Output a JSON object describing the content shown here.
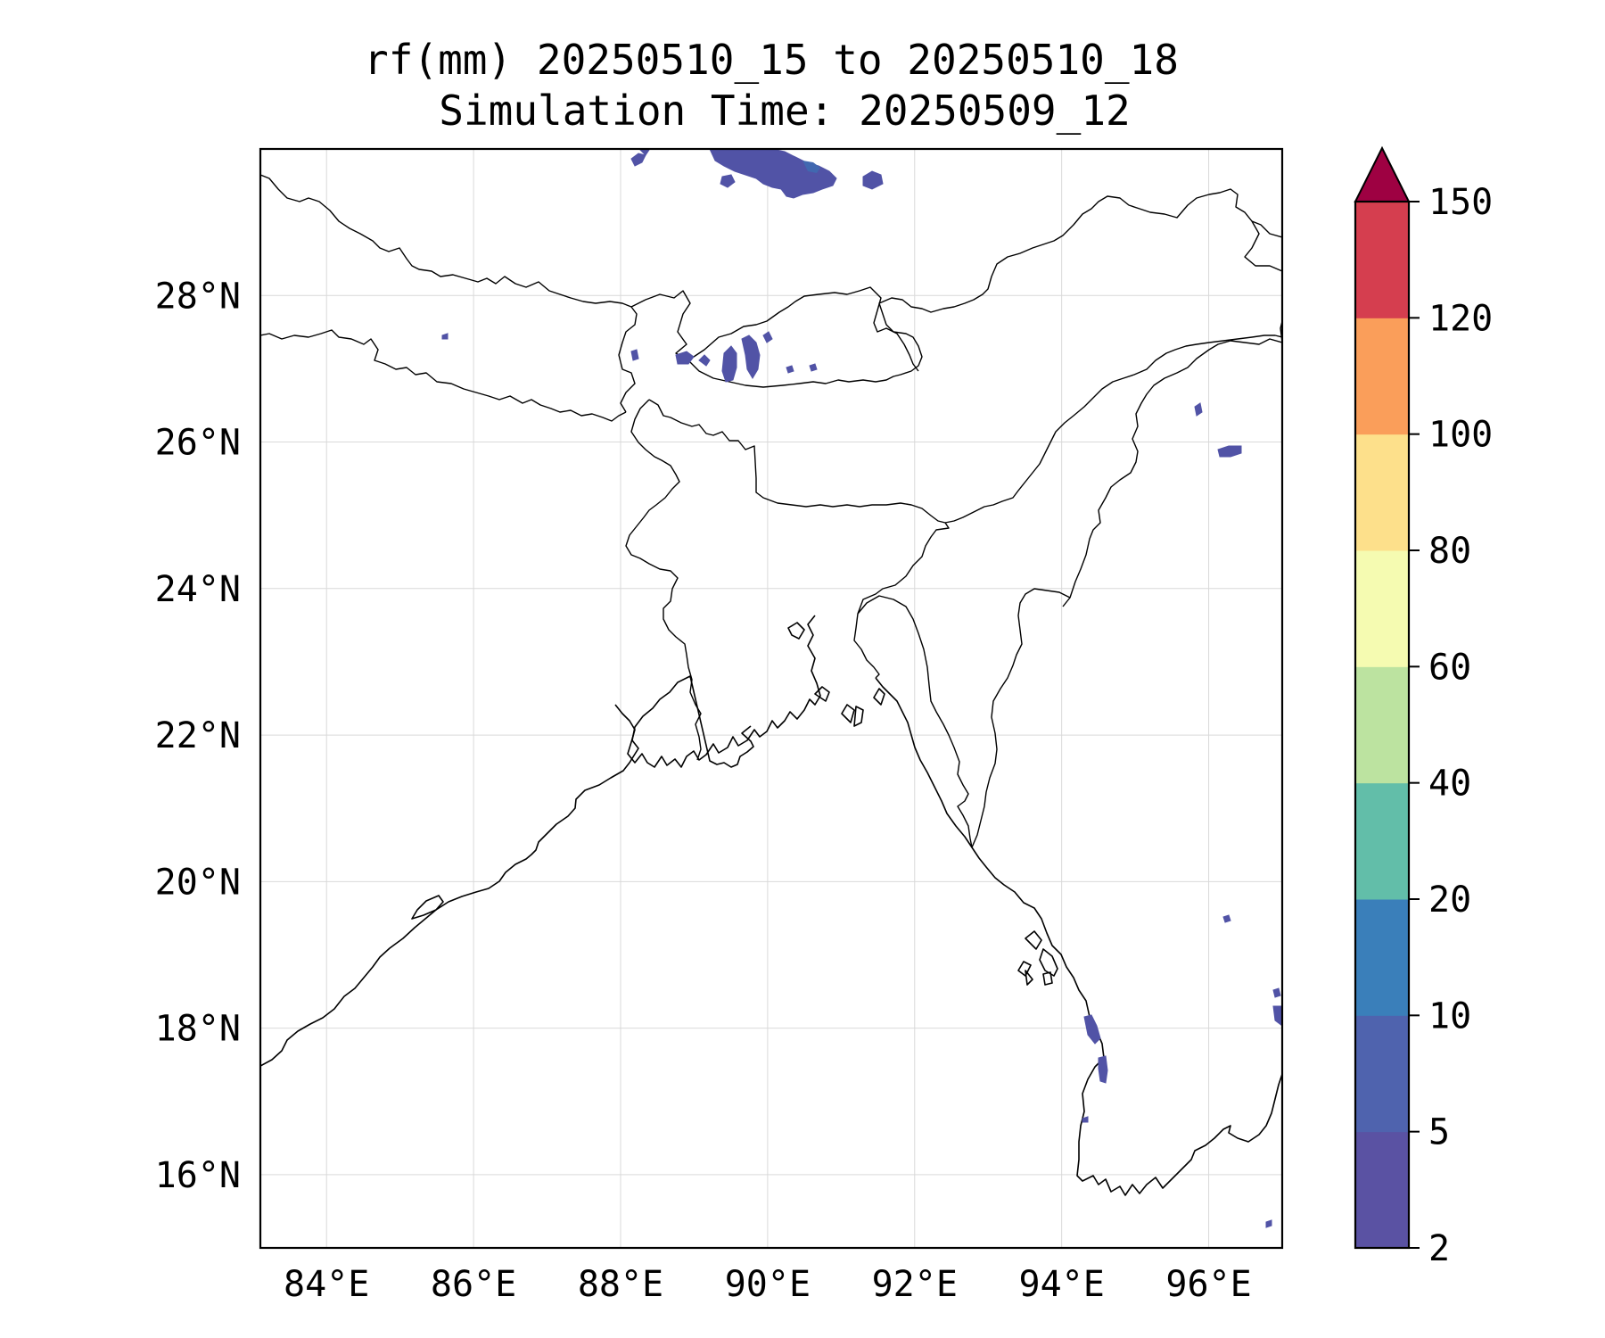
{
  "title": {
    "line1": "rf(mm) 20250510_15 to 20250510_18",
    "line2": "Simulation Time: 20250509_12"
  },
  "map": {
    "lon_range": [
      83.1,
      97.0
    ],
    "lat_range": [
      15.0,
      30.0
    ],
    "gridlines": true,
    "lon_ticks": [
      84,
      86,
      88,
      90,
      92,
      94,
      96
    ],
    "lat_ticks": [
      16,
      18,
      20,
      22,
      24,
      26,
      28
    ],
    "lon_tick_labels": [
      "84°E",
      "86°E",
      "88°E",
      "90°E",
      "92°E",
      "94°E",
      "96°E"
    ],
    "lat_tick_labels": [
      "16°N",
      "18°N",
      "20°N",
      "22°N",
      "24°N",
      "26°N",
      "28°N"
    ],
    "rain_color": "#5153a6",
    "rain_color_dark": "#4168b0"
  },
  "colorbar": {
    "levels": [
      2,
      5,
      10,
      20,
      40,
      60,
      80,
      100,
      120,
      150
    ],
    "labels": [
      "2",
      "5",
      "10",
      "20",
      "40",
      "60",
      "80",
      "100",
      "120",
      "150"
    ],
    "colors": [
      "#5a52a3",
      "#4f63ae",
      "#3a7fba",
      "#62bea9",
      "#bce3a0",
      "#f5fbb1",
      "#fde08b",
      "#fa9e5a",
      "#d53e4f"
    ],
    "extend_color": "#9e0142"
  }
}
